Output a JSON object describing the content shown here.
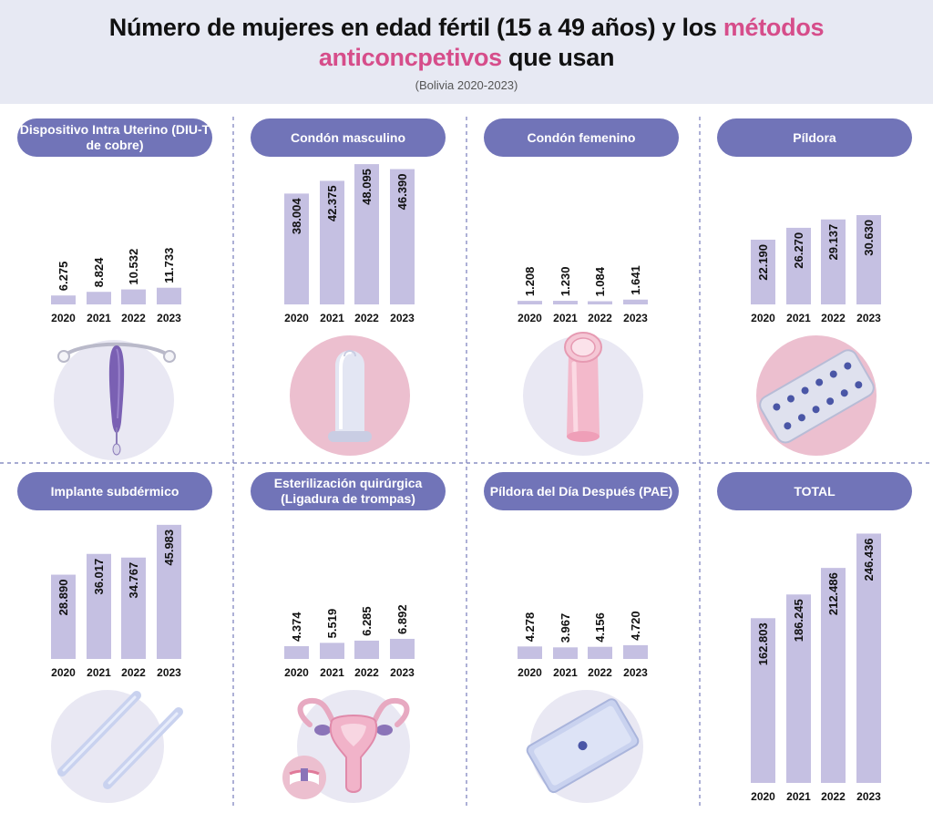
{
  "header": {
    "title_part1": "Número de mujeres en edad fértil (15 a 49 años) y los ",
    "title_highlight1": "métodos",
    "title_highlight2": "anticoncpetivos",
    "title_part2": " que usan",
    "subtitle": "(Bolivia 2020-2023)"
  },
  "colors": {
    "header_bg": "#e7e9f3",
    "pill": "#7174b8",
    "bar": "#c5c0e2",
    "highlight": "#d64d8a",
    "divider": "#8a8fc4"
  },
  "chart_data": [
    {
      "type": "bar",
      "title": "Dispositivo Intra Uterino (DIU-T de cobre)",
      "icon": "iud-icon",
      "categories": [
        "2020",
        "2021",
        "2022",
        "2023"
      ],
      "values": [
        6275,
        8824,
        10532,
        11733
      ],
      "labels": [
        "6.275",
        "8.824",
        "10.532",
        "11.733"
      ]
    },
    {
      "type": "bar",
      "title": "Condón masculino",
      "icon": "male-condom-icon",
      "categories": [
        "2020",
        "2021",
        "2022",
        "2023"
      ],
      "values": [
        38004,
        42375,
        48095,
        46390
      ],
      "labels": [
        "38.004",
        "42.375",
        "48.095",
        "46.390"
      ]
    },
    {
      "type": "bar",
      "title": "Condón femenino",
      "icon": "female-condom-icon",
      "categories": [
        "2020",
        "2021",
        "2022",
        "2023"
      ],
      "values": [
        1208,
        1230,
        1084,
        1641
      ],
      "labels": [
        "1.208",
        "1.230",
        "1.084",
        "1.641"
      ]
    },
    {
      "type": "bar",
      "title": "Píldora",
      "icon": "pill-blister-icon",
      "categories": [
        "2020",
        "2021",
        "2022",
        "2023"
      ],
      "values": [
        22190,
        26270,
        29137,
        30630
      ],
      "labels": [
        "22.190",
        "26.270",
        "29.137",
        "30.630"
      ]
    },
    {
      "type": "bar",
      "title": "Implante subdérmico",
      "icon": "implant-icon",
      "categories": [
        "2020",
        "2021",
        "2022",
        "2023"
      ],
      "values": [
        28890,
        36017,
        34767,
        45983
      ],
      "labels": [
        "28.890",
        "36.017",
        "34.767",
        "45.983"
      ]
    },
    {
      "type": "bar",
      "title": "Esterilización quirúrgica (Ligadura de trompas)",
      "icon": "uterus-icon",
      "categories": [
        "2020",
        "2021",
        "2022",
        "2023"
      ],
      "values": [
        4374,
        5519,
        6285,
        6892
      ],
      "labels": [
        "4.374",
        "5.519",
        "6.285",
        "6.892"
      ]
    },
    {
      "type": "bar",
      "title": "Píldora del Día Después (PAE)",
      "icon": "emergency-pill-icon",
      "categories": [
        "2020",
        "2021",
        "2022",
        "2023"
      ],
      "values": [
        4278,
        3967,
        4156,
        4720
      ],
      "labels": [
        "4.278",
        "3.967",
        "4.156",
        "4.720"
      ]
    },
    {
      "type": "bar",
      "title": "TOTAL",
      "categories": [
        "2020",
        "2021",
        "2022",
        "2023"
      ],
      "values": [
        162803,
        186245,
        212486,
        246436
      ],
      "labels": [
        "162.803",
        "186.245",
        "212.486",
        "246.436"
      ]
    }
  ]
}
